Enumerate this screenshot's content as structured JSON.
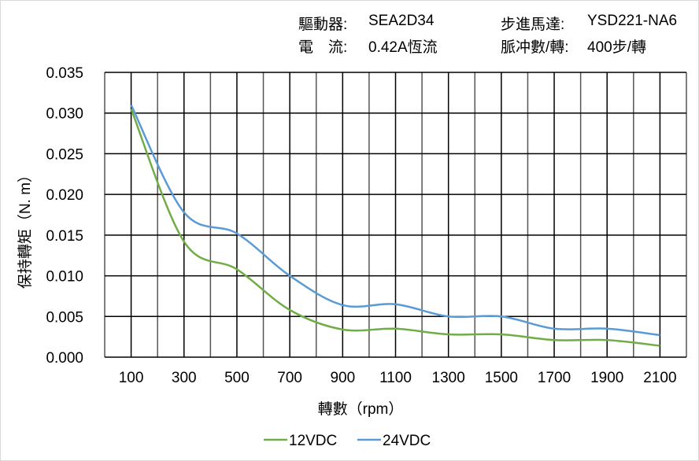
{
  "header": {
    "driver_label": "驅動器:",
    "driver_value": "SEA2D34",
    "current_label": "電　流:",
    "current_value": "0.42A恆流",
    "motor_label": "步進馬達:",
    "motor_value": "YSD221-NA6",
    "pulse_label": "脈冲數/轉:",
    "pulse_value": "400步/轉"
  },
  "chart_data": {
    "type": "line",
    "title": "",
    "xlabel": "轉數（rpm）",
    "ylabel": "保持轉矩（N. m）",
    "xlim": [
      0,
      2200
    ],
    "ylim": [
      0,
      0.035
    ],
    "grid": true,
    "legend_position": "bottom",
    "x_ticks": [
      "100",
      "300",
      "500",
      "700",
      "900",
      "1100",
      "1300",
      "1500",
      "1700",
      "1900",
      "2100"
    ],
    "y_ticks": [
      "0.000",
      "0.005",
      "0.010",
      "0.015",
      "0.020",
      "0.025",
      "0.030",
      "0.035"
    ],
    "x": [
      100,
      300,
      500,
      700,
      900,
      1100,
      1300,
      1500,
      1700,
      1900,
      2100
    ],
    "series": [
      {
        "name": "12VDC",
        "color": "#70ad47",
        "values": [
          0.0305,
          0.0142,
          0.0108,
          0.0058,
          0.0034,
          0.0035,
          0.0028,
          0.0028,
          0.0021,
          0.0021,
          0.0014
        ]
      },
      {
        "name": "24VDC",
        "color": "#5b9bd5",
        "values": [
          0.031,
          0.0178,
          0.0152,
          0.01,
          0.0064,
          0.0065,
          0.005,
          0.005,
          0.0035,
          0.0035,
          0.0027
        ]
      }
    ]
  }
}
